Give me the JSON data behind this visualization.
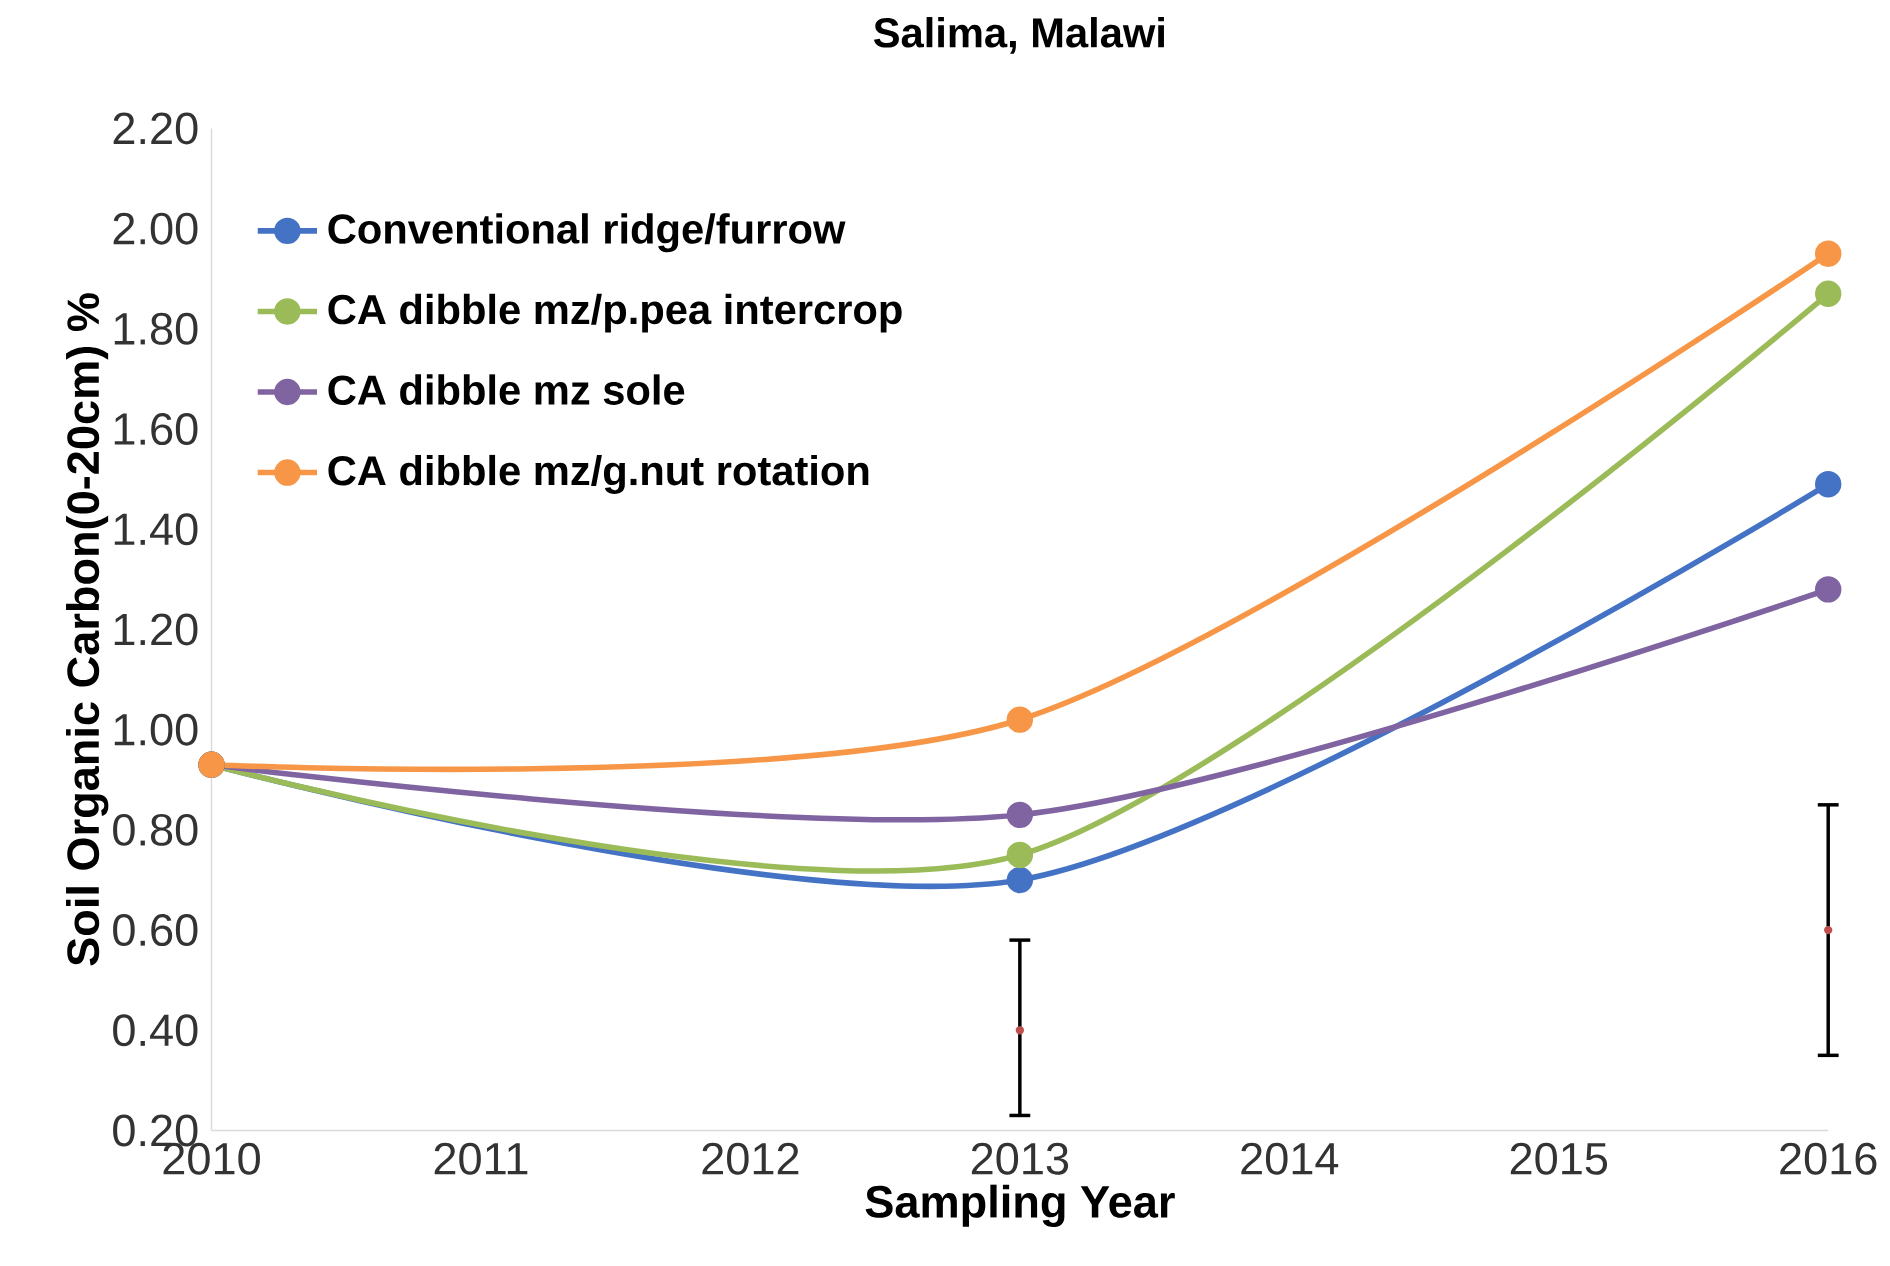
{
  "chart_data": {
    "type": "line",
    "title": "Salima, Malawi",
    "xlabel": "Sampling Year",
    "ylabel": "Soil Organic Carbon(0-20cm)  %",
    "x": [
      2010,
      2013,
      2016
    ],
    "series": [
      {
        "name": "Conventional ridge/furrow",
        "color": "#4472c4",
        "values": [
          0.93,
          0.7,
          1.49
        ]
      },
      {
        "name": "CA dibble mz/p.pea  intercrop",
        "color": "#9bbb59",
        "values": [
          0.93,
          0.75,
          1.87
        ]
      },
      {
        "name": "CA dibble mz sole",
        "color": "#8064a2",
        "values": [
          0.93,
          0.83,
          1.28
        ]
      },
      {
        "name": "CA dibble mz/g.nut rotation",
        "color": "#f79646",
        "values": [
          0.93,
          1.02,
          1.95
        ]
      },
      {
        "type": "scatter",
        "color": "#c0504d",
        "x": [
          2013,
          2016
        ],
        "values": [
          0.4,
          0.6
        ],
        "errors": [
          [
            0.23,
            0.58
          ],
          [
            0.35,
            0.85
          ]
        ]
      }
    ],
    "xlim": [
      2010,
      2016
    ],
    "xticks": [
      2010,
      2011,
      2012,
      2013,
      2014,
      2015,
      2016
    ],
    "ylim": [
      0.2,
      2.2
    ],
    "yticks": [
      {
        "value": 0.2,
        "label": "0.20"
      },
      {
        "value": 0.4,
        "label": "0.40"
      },
      {
        "value": 0.6,
        "label": "0.60"
      },
      {
        "value": 0.8,
        "label": "0.80"
      },
      {
        "value": 1.0,
        "label": "1.00"
      },
      {
        "value": 1.2,
        "label": "1.20"
      },
      {
        "value": 1.4,
        "label": "1.40"
      },
      {
        "value": 1.6,
        "label": "1.60"
      },
      {
        "value": 1.8,
        "label": "1.80"
      },
      {
        "value": 2.0,
        "label": "2.00"
      },
      {
        "value": 2.2,
        "label": "2.20"
      }
    ],
    "grid": false,
    "legend": "top left",
    "marker": "circle",
    "line_style": "solid"
  }
}
